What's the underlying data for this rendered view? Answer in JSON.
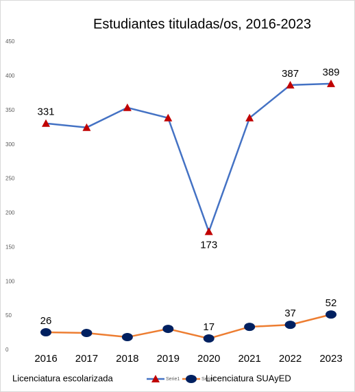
{
  "chart_data": {
    "type": "line",
    "title": "Estudiantes tituladas/os, 2016-2023",
    "categories": [
      "2016",
      "2017",
      "2018",
      "2019",
      "2020",
      "2021",
      "2022",
      "2023"
    ],
    "series": [
      {
        "name": "Serie1",
        "color": "#4472c4",
        "marker": "triangle",
        "marker_color": "#c00000",
        "values": [
          331,
          325,
          354,
          339,
          173,
          339,
          387,
          389
        ],
        "value_labels": [
          "331",
          null,
          null,
          null,
          "173",
          null,
          "387",
          "389"
        ]
      },
      {
        "name": "Serie2",
        "color": "#ed7d31",
        "marker": "ellipse",
        "marker_color": "#002060",
        "values": [
          26,
          25,
          19,
          31,
          17,
          34,
          37,
          52
        ],
        "value_labels": [
          "26",
          null,
          null,
          null,
          "17",
          null,
          "37",
          "52"
        ]
      }
    ],
    "ylim": [
      0,
      450
    ],
    "yticks": [
      0,
      50,
      100,
      150,
      200,
      250,
      300,
      350,
      400,
      450
    ],
    "grid": false,
    "legend": "bottom",
    "legend_notes": [
      "Licenciatura escolarizada",
      "Licenciatura SUAyED"
    ]
  }
}
